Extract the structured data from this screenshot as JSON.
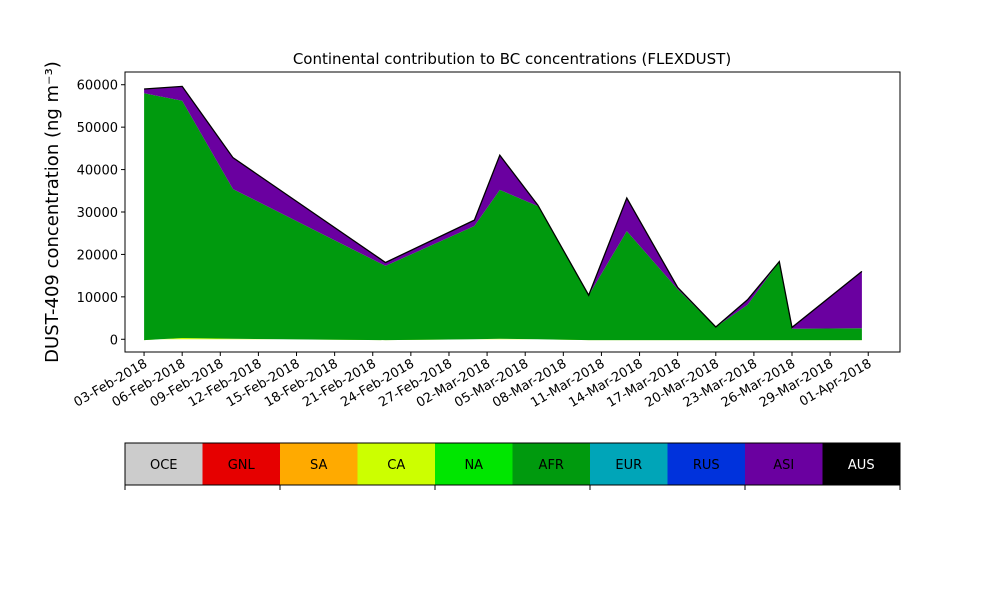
{
  "chart_data": {
    "type": "area",
    "title": "Continental contribution to BC concentrations (FLEXDUST)",
    "ylabel": "DUST-409 concentration (ng m⁻³)",
    "xlabel": "",
    "ylim": [
      -3000,
      63000
    ],
    "yticks": [
      0,
      10000,
      20000,
      30000,
      40000,
      50000,
      60000
    ],
    "ytick_labels": [
      "0",
      "10000",
      "20000",
      "30000",
      "40000",
      "50000",
      "60000"
    ],
    "xlim_days": [
      -1.5,
      59.5
    ],
    "xticks_days": [
      0,
      3,
      6,
      9,
      12,
      15,
      18,
      21,
      24,
      27,
      30,
      33,
      36,
      39,
      42,
      45,
      48,
      51,
      54,
      57
    ],
    "xtick_labels": [
      "03-Feb-2018",
      "06-Feb-2018",
      "09-Feb-2018",
      "12-Feb-2018",
      "15-Feb-2018",
      "18-Feb-2018",
      "21-Feb-2018",
      "24-Feb-2018",
      "27-Feb-2018",
      "02-Mar-2018",
      "05-Mar-2018",
      "08-Mar-2018",
      "11-Mar-2018",
      "14-Mar-2018",
      "17-Mar-2018",
      "20-Mar-2018",
      "23-Mar-2018",
      "26-Mar-2018",
      "29-Mar-2018",
      "01-Apr-2018"
    ],
    "x_days": [
      0,
      3,
      7,
      19,
      26,
      28,
      31,
      35,
      38,
      42,
      45,
      47.5,
      50,
      51,
      56.5
    ],
    "series": [
      {
        "name": "CA",
        "color": "#ccff00",
        "values": [
          -200,
          300,
          100,
          -200,
          0,
          100,
          0,
          -200,
          -200,
          -200,
          -200,
          -200,
          -200,
          -200,
          -200
        ]
      },
      {
        "name": "AFR",
        "color": "#009a0e",
        "values": [
          58200,
          55900,
          35300,
          17500,
          26700,
          35100,
          31400,
          10600,
          25700,
          12000,
          3100,
          8300,
          18500,
          2700,
          2800
        ]
      },
      {
        "name": "ASI",
        "color": "#6a00a0",
        "values": [
          1000,
          3400,
          7400,
          800,
          1400,
          8200,
          200,
          0,
          7800,
          400,
          0,
          1200,
          0,
          300,
          13400
        ]
      }
    ],
    "grid": false,
    "legend": "colorbar-bottom",
    "colorbar": {
      "entries": [
        {
          "name": "OCE",
          "color": "#cccccc",
          "text_color": "#000000"
        },
        {
          "name": "GNL",
          "color": "#e60000",
          "text_color": "#000000"
        },
        {
          "name": "SA",
          "color": "#ffaa00",
          "text_color": "#000000"
        },
        {
          "name": "CA",
          "color": "#ccff00",
          "text_color": "#000000"
        },
        {
          "name": "NA",
          "color": "#00e600",
          "text_color": "#000000"
        },
        {
          "name": "AFR",
          "color": "#009a0e",
          "text_color": "#000000"
        },
        {
          "name": "EUR",
          "color": "#00a5b8",
          "text_color": "#000000"
        },
        {
          "name": "RUS",
          "color": "#0032dc",
          "text_color": "#000000"
        },
        {
          "name": "ASI",
          "color": "#6a00a0",
          "text_color": "#000000"
        },
        {
          "name": "AUS",
          "color": "#000000",
          "text_color": "#ffffff"
        }
      ]
    }
  }
}
